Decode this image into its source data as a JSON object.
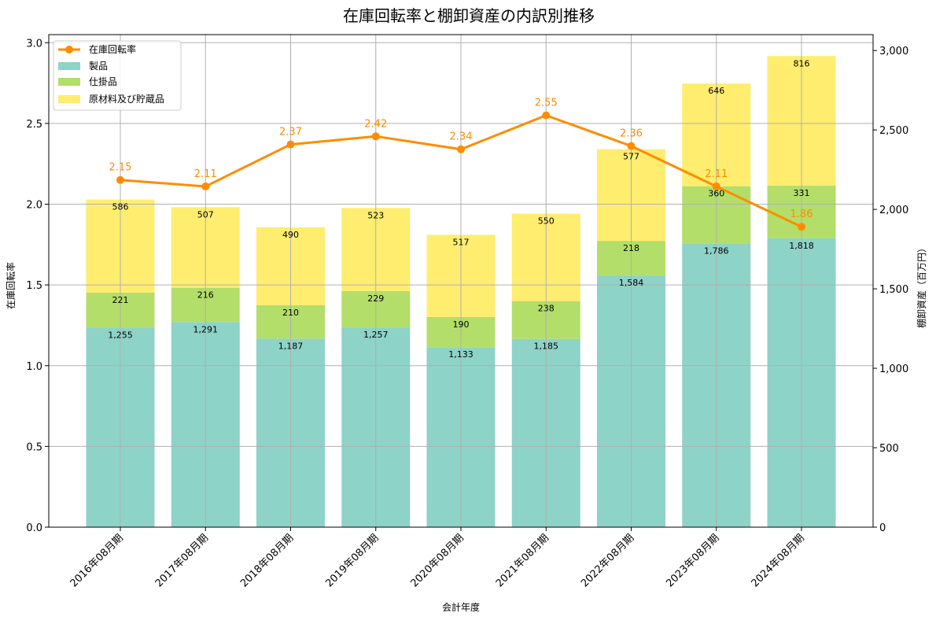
{
  "chart_data": {
    "type": "bar",
    "title": "在庫回転率と棚卸資産の内訳別推移",
    "xlabel": "会計年度",
    "ylabel_left": "在庫回転率",
    "ylabel_right": "棚卸資産（百万円）",
    "categories": [
      "2016年08月期",
      "2017年08月期",
      "2018年08月期",
      "2019年08月期",
      "2020年08月期",
      "2021年08月期",
      "2022年08月期",
      "2023年08月期",
      "2024年08月期"
    ],
    "stacked_series": [
      {
        "name": "製品",
        "color": "#8dd3c7",
        "values": [
          1255,
          1291,
          1187,
          1257,
          1133,
          1185,
          1584,
          1786,
          1818
        ],
        "labels": [
          "1,255",
          "1,291",
          "1,187",
          "1,257",
          "1,133",
          "1,185",
          "1,584",
          "1,786",
          "1,818"
        ]
      },
      {
        "name": "仕掛品",
        "color": "#b3de69",
        "values": [
          221,
          216,
          210,
          229,
          190,
          238,
          218,
          360,
          331
        ],
        "labels": [
          "221",
          "216",
          "210",
          "229",
          "190",
          "238",
          "218",
          "360",
          "331"
        ]
      },
      {
        "name": "原材料及び貯蔵品",
        "color": "#ffed6f",
        "values": [
          586,
          507,
          490,
          523,
          517,
          550,
          577,
          646,
          816
        ],
        "labels": [
          "586",
          "507",
          "490",
          "523",
          "517",
          "550",
          "577",
          "646",
          "816"
        ]
      }
    ],
    "line_series": {
      "name": "在庫回転率",
      "color": "#ff8c00",
      "values": [
        2.15,
        2.11,
        2.37,
        2.42,
        2.34,
        2.55,
        2.36,
        2.11,
        1.86
      ],
      "labels": [
        "2.15",
        "2.11",
        "2.37",
        "2.42",
        "2.34",
        "2.55",
        "2.36",
        "2.11",
        "1.86"
      ]
    },
    "ylim_left": [
      0,
      3.05
    ],
    "yticks_left": [
      0.0,
      0.5,
      1.0,
      1.5,
      2.0,
      2.5,
      3.0
    ],
    "ytick_labels_left": [
      "0.0",
      "0.5",
      "1.0",
      "1.5",
      "2.0",
      "2.5",
      "3.0"
    ],
    "ylim_right": [
      0,
      3100
    ],
    "yticks_right": [
      0,
      500,
      1000,
      1500,
      2000,
      2500,
      3000
    ],
    "ytick_labels_right": [
      "0",
      "500",
      "1,000",
      "1,500",
      "2,000",
      "2,500",
      "3,000"
    ],
    "grid": true,
    "legend_position": "top-left"
  }
}
